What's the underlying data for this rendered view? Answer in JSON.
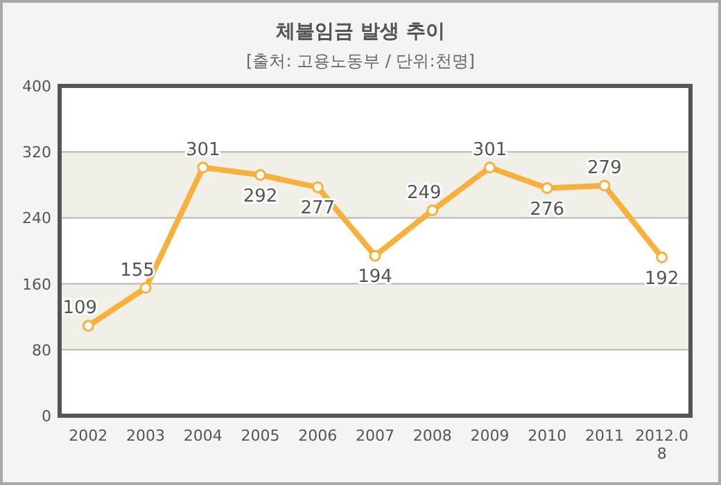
{
  "chart_data": {
    "type": "line",
    "title": "체불임금 발생 추이",
    "subtitle": "[출처: 고용노동부 / 단위:천명]",
    "categories": [
      "2002",
      "2003",
      "2004",
      "2005",
      "2006",
      "2007",
      "2008",
      "2009",
      "2010",
      "2011",
      "2012.08"
    ],
    "series": [
      {
        "color": "#f7b03c",
        "values": [
          109,
          155,
          301,
          292,
          277,
          194,
          249,
          301,
          276,
          279,
          192
        ]
      }
    ],
    "ylim": [
      0,
      400
    ],
    "yticks": [
      0,
      80,
      160,
      240,
      320,
      400
    ],
    "grid": "y",
    "marker": "circle",
    "line_style": "solid",
    "data_labels": true
  }
}
